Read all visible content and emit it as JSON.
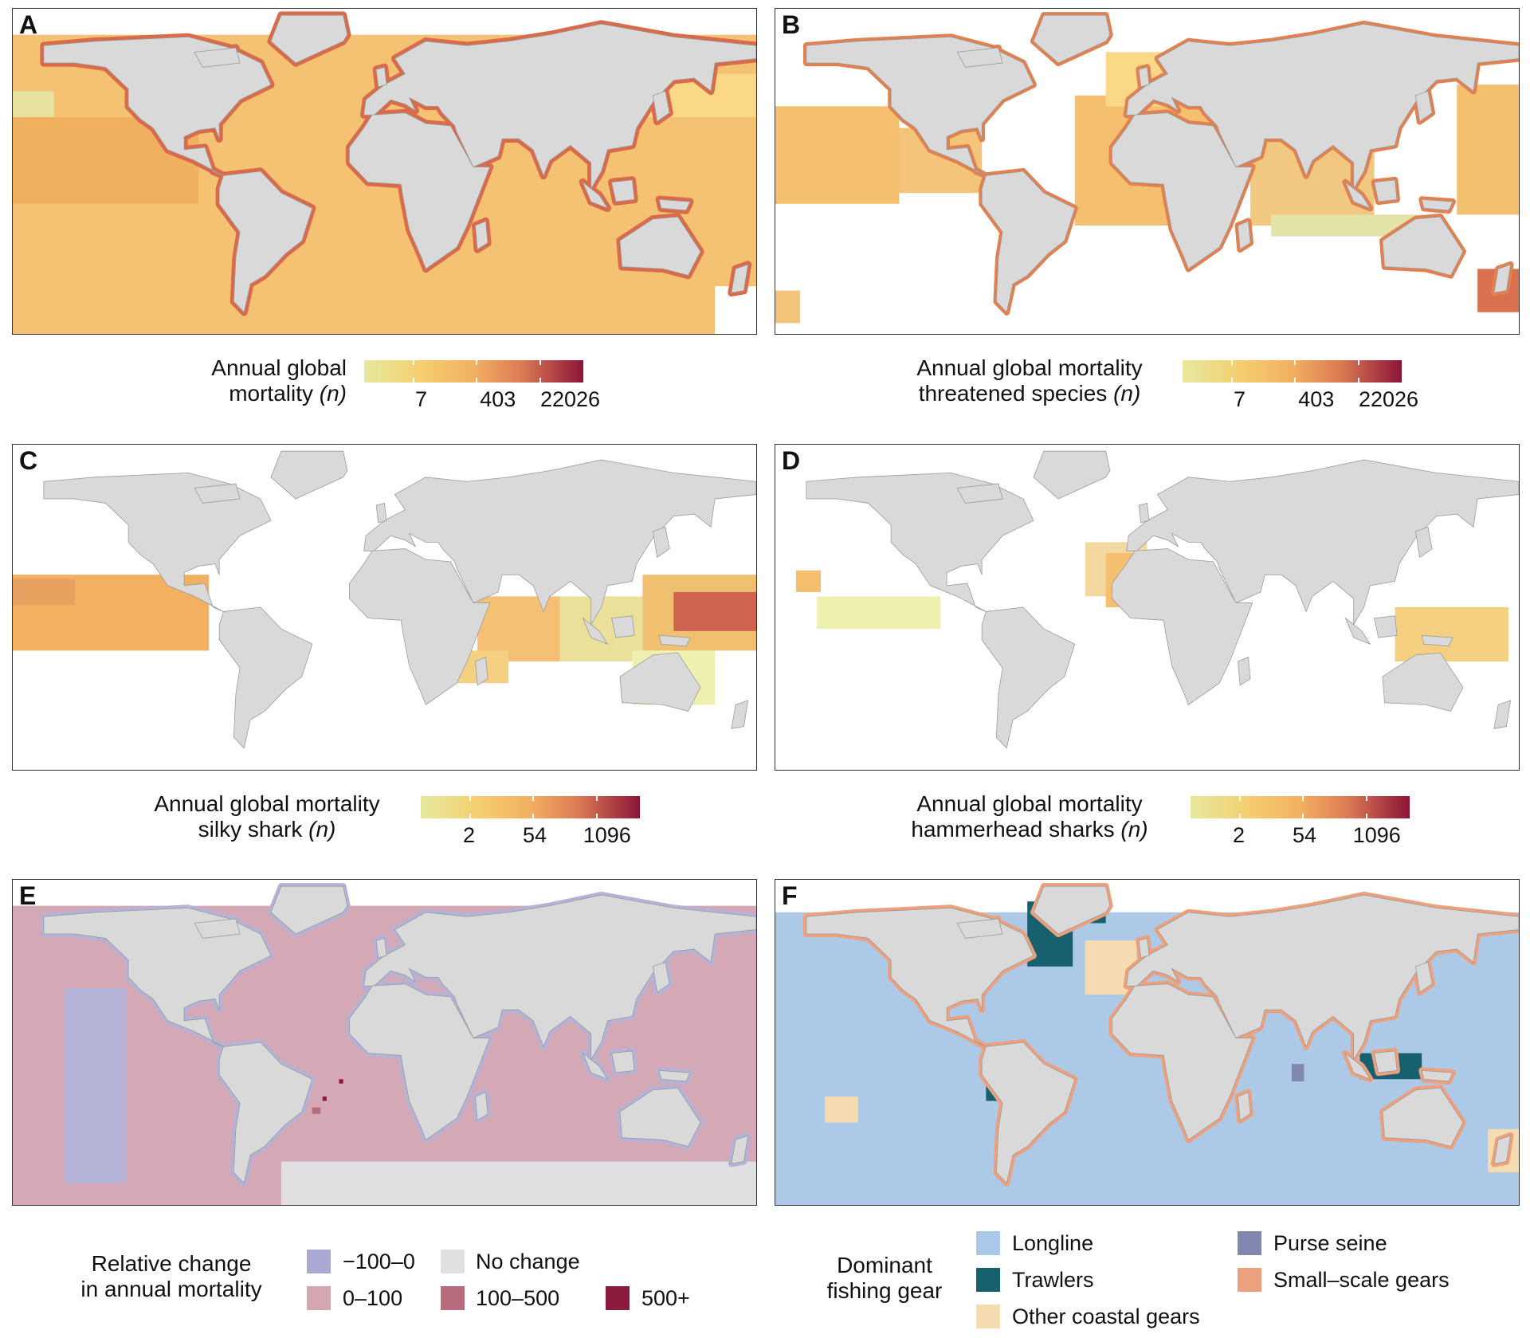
{
  "panels": [
    {
      "id": "A",
      "ocean": "#f4c272",
      "coast": "#d96a4a",
      "theme": "full"
    },
    {
      "id": "B",
      "ocean": "#ffffff",
      "coast": "#e28050",
      "theme": "threat"
    },
    {
      "id": "C",
      "ocean": "#ffffff",
      "coast": "none",
      "theme": "silky"
    },
    {
      "id": "D",
      "ocean": "#ffffff",
      "coast": "none",
      "theme": "hammer"
    },
    {
      "id": "E",
      "ocean": "#d4a8b4",
      "coast": "#b4b2d6",
      "theme": "change"
    },
    {
      "id": "F",
      "ocean": "#adc9e8",
      "coast": "#eea07c",
      "theme": "gear"
    }
  ],
  "legends": {
    "A": {
      "title_line1": "Annual global",
      "title_line2": "mortality",
      "title_n": "(n)",
      "ticks": [
        "7",
        "403",
        "22026"
      ]
    },
    "B": {
      "title_line1": "Annual global mortality",
      "title_line2": "threatened species",
      "title_n": "(n)",
      "ticks": [
        "7",
        "403",
        "22026"
      ]
    },
    "C": {
      "title_line1": "Annual global mortality",
      "title_line2": "silky shark",
      "title_n": "(n)",
      "ticks": [
        "2",
        "54",
        "1096"
      ]
    },
    "D": {
      "title_line1": "Annual global mortality",
      "title_line2": "hammerhead sharks",
      "title_n": "(n)",
      "ticks": [
        "2",
        "54",
        "1096"
      ]
    },
    "E": {
      "title_line1": "Relative change",
      "title_line2": "in annual mortality",
      "items": [
        {
          "label": "−100–0",
          "color": "#a9a9d3"
        },
        {
          "label": "No change",
          "color": "#e0e0e3"
        },
        {
          "label": "0–100",
          "color": "#d3a6b1"
        },
        {
          "label": "100–500",
          "color": "#b86b7d"
        },
        {
          "label": "500+",
          "color": "#8b1a3b"
        }
      ]
    },
    "F": {
      "title_line1": "Dominant",
      "title_line2": "fishing gear",
      "items": [
        {
          "label": "Longline",
          "color": "#aac8e8"
        },
        {
          "label": "Trawlers",
          "color": "#17616f"
        },
        {
          "label": "Other coastal gears",
          "color": "#f5dcb0"
        },
        {
          "label": "Purse seine",
          "color": "#8088b0"
        },
        {
          "label": "Small–scale gears",
          "color": "#eda07e"
        }
      ]
    }
  }
}
